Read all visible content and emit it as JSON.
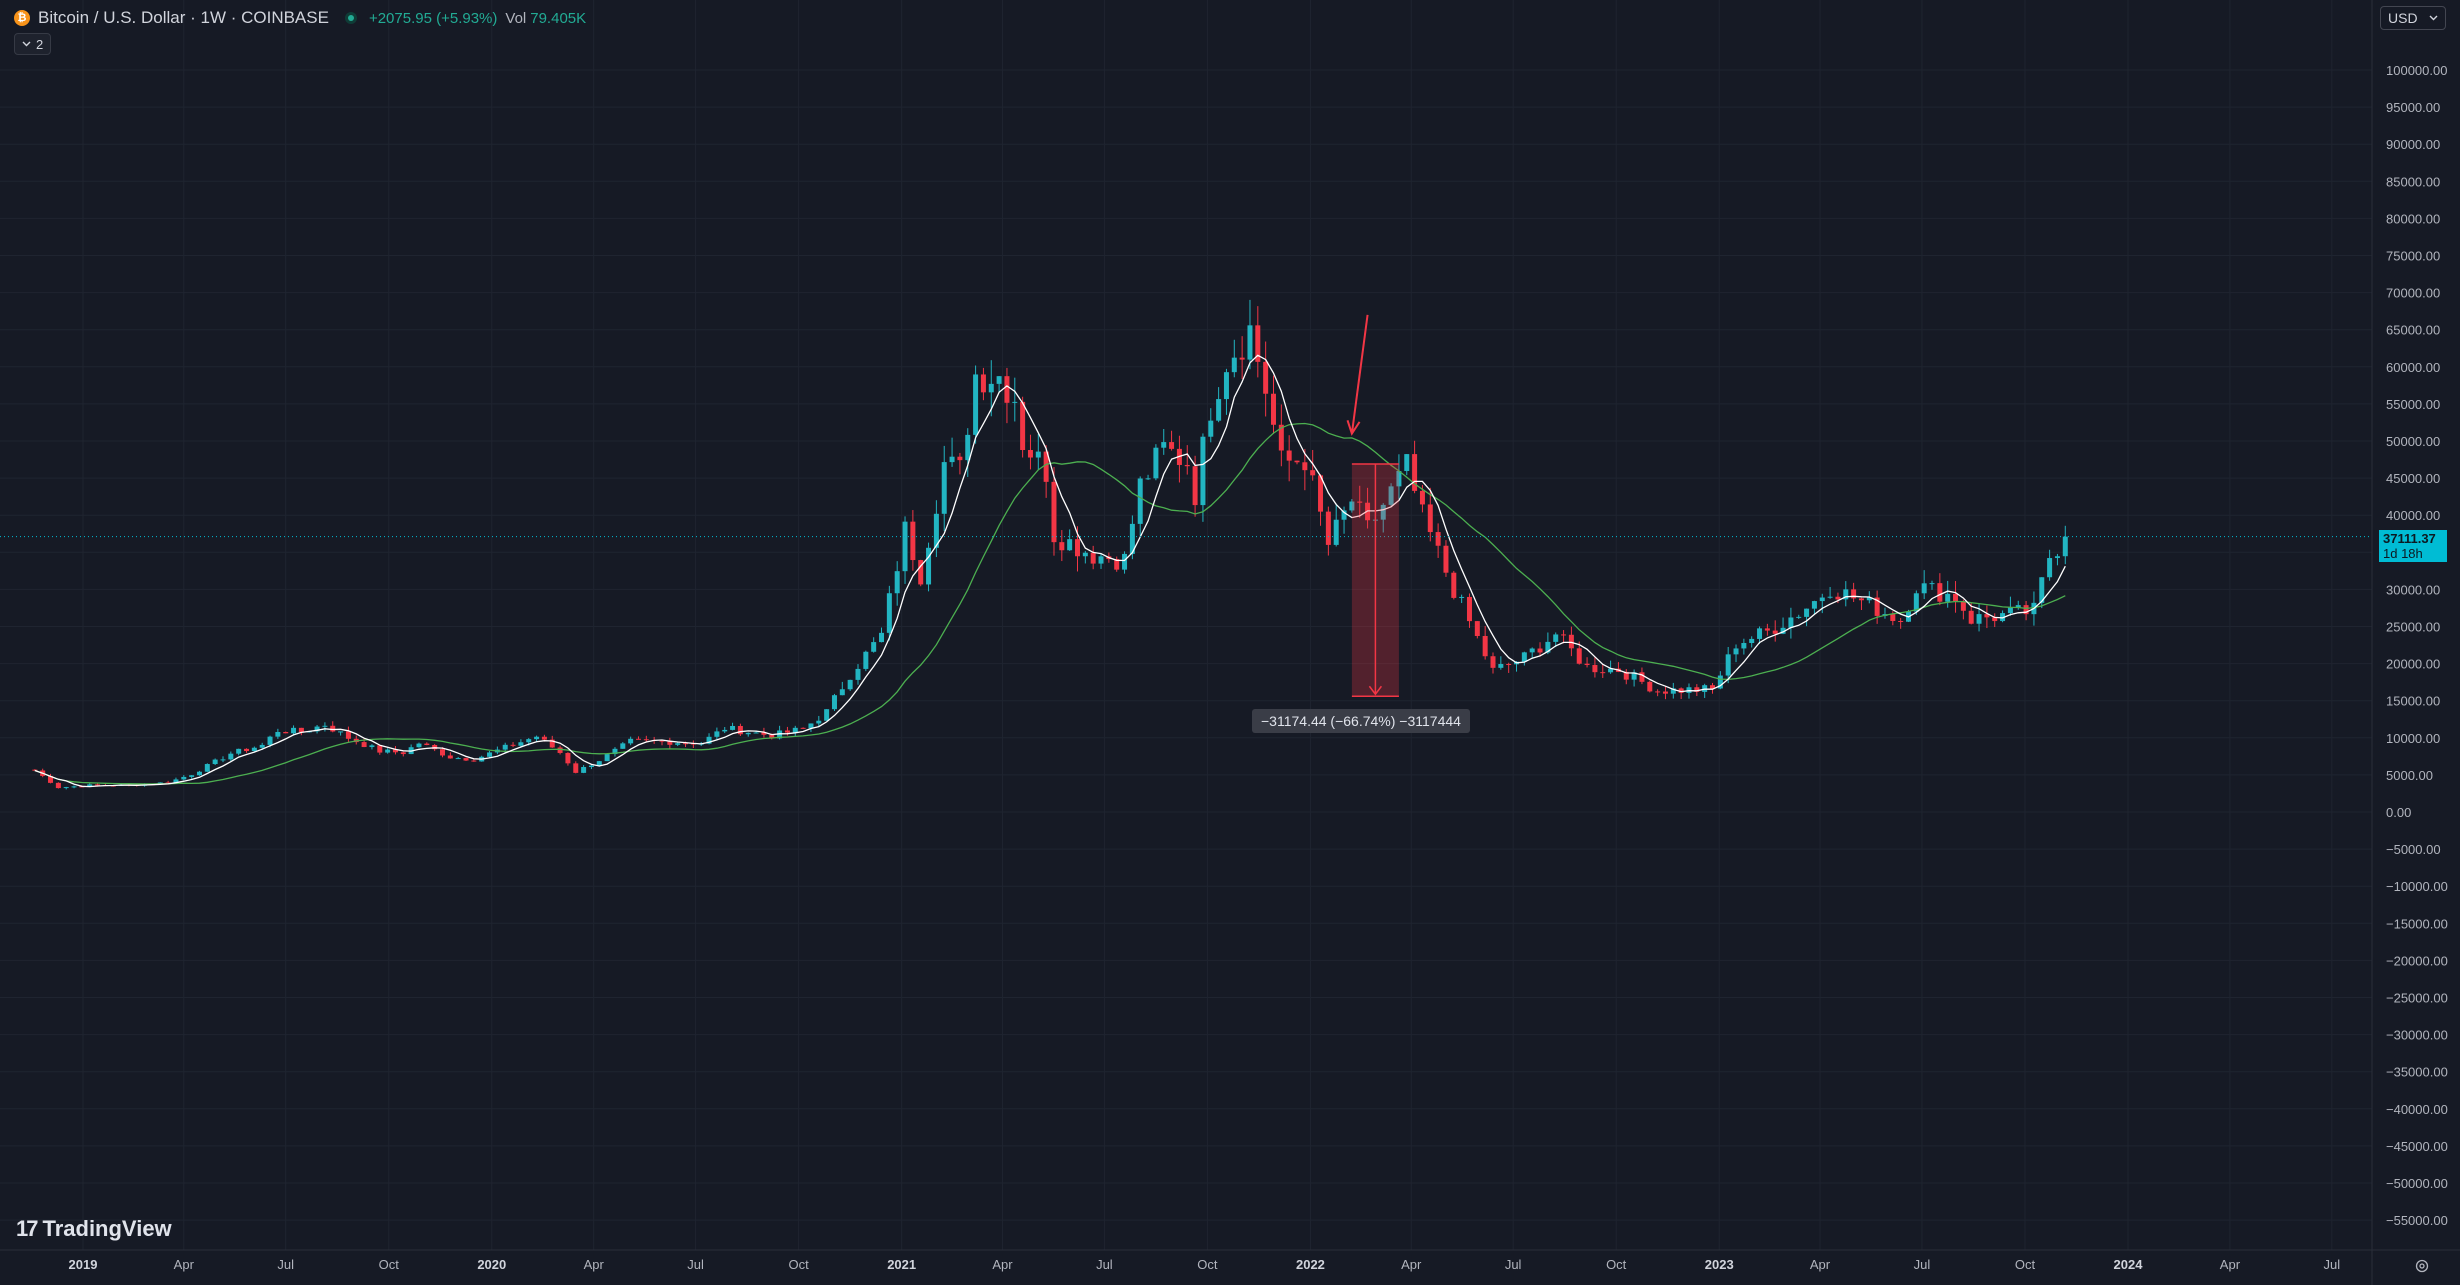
{
  "symbol": {
    "name": "Bitcoin / U.S. Dollar",
    "interval": "1W",
    "exchange": "COINBASE",
    "title_text": "Bitcoin / U.S. Dollar · 1W · COINBASE",
    "coin_icon": "bitcoin-icon",
    "change": "+2075.95 (+5.93%)",
    "volume_label": "Vol",
    "volume_value": "79.405K"
  },
  "indicators_toggle": {
    "count": "2",
    "icon": "chevron-down-icon"
  },
  "currency": {
    "label": "USD",
    "icon": "chevron-down-icon"
  },
  "last_price": {
    "value": "37111.37",
    "countdown": "1d 18h",
    "numeric": 37111.37
  },
  "measure": {
    "label": "−31174.44 (−66.74%) −3117444",
    "start_price": 46900,
    "end_price": 15600,
    "start_date": "2022-02-07",
    "end_date": "2022-03-21",
    "color": "#f23645"
  },
  "annotation_arrow": {
    "from_date": "2022-02-21",
    "from_price": 67000,
    "to_date": "2022-02-07",
    "to_price": 51000,
    "color": "#f23645"
  },
  "branding": {
    "logo_text": "TradingView",
    "logo_icon": "tradingview-logo-icon"
  },
  "settings": {
    "icon": "gear-icon"
  },
  "colors": {
    "background": "#161a25",
    "grid": "#1f2430",
    "up": "#22b5c2",
    "down": "#f23645",
    "ma_fast": "#ffffff",
    "ma_slow": "#4caf50",
    "price_line": "#00bcd4",
    "axis_text": "#b2b5be"
  },
  "chart_data": {
    "type": "candlestick",
    "x_axis": {
      "ticks": [
        {
          "date": "2019-01-01",
          "label": "2019",
          "bold": true
        },
        {
          "date": "2019-04-01",
          "label": "Apr"
        },
        {
          "date": "2019-07-01",
          "label": "Jul"
        },
        {
          "date": "2019-10-01",
          "label": "Oct"
        },
        {
          "date": "2020-01-01",
          "label": "2020",
          "bold": true
        },
        {
          "date": "2020-04-01",
          "label": "Apr"
        },
        {
          "date": "2020-07-01",
          "label": "Jul"
        },
        {
          "date": "2020-10-01",
          "label": "Oct"
        },
        {
          "date": "2021-01-01",
          "label": "2021",
          "bold": true
        },
        {
          "date": "2021-04-01",
          "label": "Apr"
        },
        {
          "date": "2021-07-01",
          "label": "Jul"
        },
        {
          "date": "2021-10-01",
          "label": "Oct"
        },
        {
          "date": "2022-01-01",
          "label": "2022",
          "bold": true
        },
        {
          "date": "2022-04-01",
          "label": "Apr"
        },
        {
          "date": "2022-07-01",
          "label": "Jul"
        },
        {
          "date": "2022-10-01",
          "label": "Oct"
        },
        {
          "date": "2023-01-01",
          "label": "2023",
          "bold": true
        },
        {
          "date": "2023-04-01",
          "label": "Apr"
        },
        {
          "date": "2023-07-01",
          "label": "Jul"
        },
        {
          "date": "2023-10-01",
          "label": "Oct"
        },
        {
          "date": "2024-01-01",
          "label": "2024",
          "bold": true
        },
        {
          "date": "2024-04-01",
          "label": "Apr"
        },
        {
          "date": "2024-07-01",
          "label": "Jul"
        }
      ]
    },
    "y_axis": {
      "range": [
        -57500,
        107500
      ],
      "ticks": [
        {
          "value": 100000,
          "label": "100000.00"
        },
        {
          "value": 95000,
          "label": "95000.00"
        },
        {
          "value": 90000,
          "label": "90000.00"
        },
        {
          "value": 85000,
          "label": "85000.00"
        },
        {
          "value": 80000,
          "label": "80000.00"
        },
        {
          "value": 75000,
          "label": "75000.00"
        },
        {
          "value": 70000,
          "label": "70000.00"
        },
        {
          "value": 65000,
          "label": "65000.00"
        },
        {
          "value": 60000,
          "label": "60000.00"
        },
        {
          "value": 55000,
          "label": "55000.00"
        },
        {
          "value": 50000,
          "label": "50000.00"
        },
        {
          "value": 45000,
          "label": "45000.00"
        },
        {
          "value": 40000,
          "label": "40000.00"
        },
        {
          "value": 35000,
          "label": "35000.00"
        },
        {
          "value": 30000,
          "label": "30000.00"
        },
        {
          "value": 25000,
          "label": "25000.00"
        },
        {
          "value": 20000,
          "label": "20000.00"
        },
        {
          "value": 15000,
          "label": "15000.00"
        },
        {
          "value": 10000,
          "label": "10000.00"
        },
        {
          "value": 5000,
          "label": "5000.00"
        },
        {
          "value": 0,
          "label": "0.00"
        },
        {
          "value": -5000,
          "label": "−5000.00"
        },
        {
          "value": -10000,
          "label": "−10000.00"
        },
        {
          "value": -15000,
          "label": "−15000.00"
        },
        {
          "value": -20000,
          "label": "−20000.00"
        },
        {
          "value": -25000,
          "label": "−25000.00"
        },
        {
          "value": -30000,
          "label": "−30000.00"
        },
        {
          "value": -35000,
          "label": "−35000.00"
        },
        {
          "value": -40000,
          "label": "−40000.00"
        },
        {
          "value": -45000,
          "label": "−45000.00"
        },
        {
          "value": -50000,
          "label": "−50000.00"
        },
        {
          "value": -55000,
          "label": "−55000.00"
        }
      ]
    },
    "series_anchors": {
      "first_week": "2018-11-19",
      "weekly_close": [
        [
          "2018-11-19",
          5600
        ],
        [
          "2018-12-10",
          3300
        ],
        [
          "2019-01-07",
          3600
        ],
        [
          "2019-02-11",
          3600
        ],
        [
          "2019-03-18",
          4000
        ],
        [
          "2019-04-08",
          5100
        ],
        [
          "2019-05-13",
          7900
        ],
        [
          "2019-06-10",
          9000
        ],
        [
          "2019-06-24",
          11000
        ],
        [
          "2019-07-15",
          10800
        ],
        [
          "2019-08-05",
          11800
        ],
        [
          "2019-08-26",
          10000
        ],
        [
          "2019-09-23",
          8200
        ],
        [
          "2019-10-14",
          8000
        ],
        [
          "2019-10-28",
          9300
        ],
        [
          "2019-11-25",
          7400
        ],
        [
          "2019-12-16",
          7100
        ],
        [
          "2020-01-13",
          8700
        ],
        [
          "2020-02-10",
          10200
        ],
        [
          "2020-03-02",
          8000
        ],
        [
          "2020-03-16",
          5400
        ],
        [
          "2020-04-06",
          7000
        ],
        [
          "2020-05-04",
          9500
        ],
        [
          "2020-06-01",
          9500
        ],
        [
          "2020-07-06",
          9300
        ],
        [
          "2020-07-27",
          11300
        ],
        [
          "2020-09-07",
          10300
        ],
        [
          "2020-10-05",
          11200
        ],
        [
          "2020-10-26",
          13500
        ],
        [
          "2020-11-16",
          18600
        ],
        [
          "2020-12-14",
          23800
        ],
        [
          "2021-01-04",
          38000
        ],
        [
          "2021-01-18",
          32000
        ],
        [
          "2021-02-08",
          47000
        ],
        [
          "2021-02-22",
          46000
        ],
        [
          "2021-03-08",
          59000
        ],
        [
          "2021-03-29",
          58800
        ],
        [
          "2021-04-12",
          56000
        ],
        [
          "2021-04-19",
          50000
        ],
        [
          "2021-05-10",
          46000
        ],
        [
          "2021-05-17",
          37500
        ],
        [
          "2021-06-07",
          35800
        ],
        [
          "2021-06-21",
          34700
        ],
        [
          "2021-07-19",
          34000
        ],
        [
          "2021-08-02",
          44000
        ],
        [
          "2021-08-23",
          48900
        ],
        [
          "2021-09-13",
          47200
        ],
        [
          "2021-09-20",
          43000
        ],
        [
          "2021-10-04",
          54800
        ],
        [
          "2021-10-18",
          61000
        ],
        [
          "2021-11-08",
          65000
        ],
        [
          "2021-11-22",
          57000
        ],
        [
          "2021-12-06",
          47000
        ],
        [
          "2021-12-27",
          47700
        ],
        [
          "2022-01-17",
          36000
        ],
        [
          "2022-02-07",
          42000
        ],
        [
          "2022-02-21",
          38000
        ],
        [
          "2022-03-28",
          46500
        ],
        [
          "2022-04-11",
          39700
        ],
        [
          "2022-05-09",
          30000
        ],
        [
          "2022-06-13",
          19000
        ],
        [
          "2022-07-11",
          20800
        ],
        [
          "2022-08-08",
          24000
        ],
        [
          "2022-09-05",
          19500
        ],
        [
          "2022-10-03",
          19200
        ],
        [
          "2022-11-07",
          16400
        ],
        [
          "2022-12-26",
          16500
        ],
        [
          "2023-01-16",
          22700
        ],
        [
          "2023-02-13",
          24300
        ],
        [
          "2023-03-13",
          26900
        ],
        [
          "2023-03-27",
          28400
        ],
        [
          "2023-04-10",
          30300
        ],
        [
          "2023-05-01",
          28900
        ],
        [
          "2023-06-12",
          25900
        ],
        [
          "2023-06-26",
          30500
        ],
        [
          "2023-07-31",
          29000
        ],
        [
          "2023-08-14",
          26000
        ],
        [
          "2023-09-11",
          26500
        ],
        [
          "2023-10-09",
          27100
        ],
        [
          "2023-10-23",
          34500
        ],
        [
          "2023-11-06",
          37111
        ]
      ]
    }
  }
}
